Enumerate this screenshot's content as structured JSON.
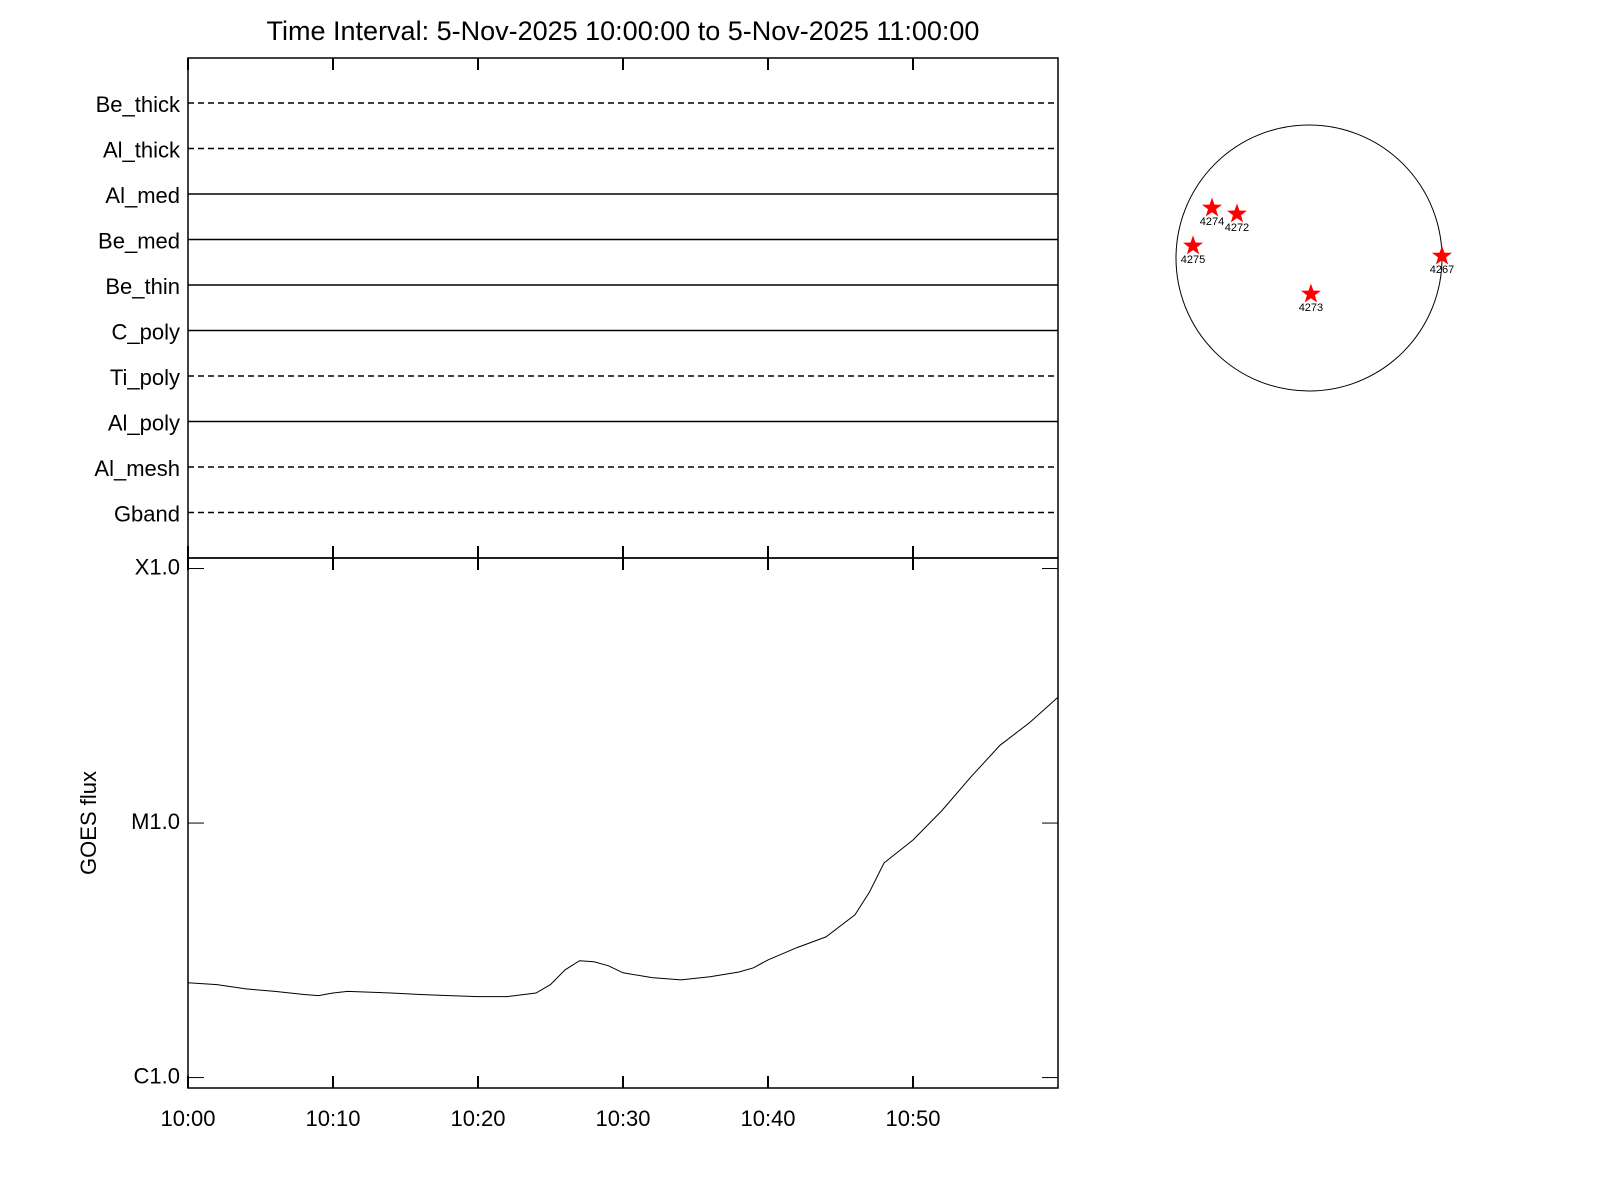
{
  "chart_data": [
    {
      "type": "detector_rows",
      "title": "Time Interval:  5-Nov-2025 10:00:00 to  5-Nov-2025 11:00:00",
      "rows": [
        {
          "name": "Be_thick",
          "style": "dashed"
        },
        {
          "name": "Al_thick",
          "style": "dashed"
        },
        {
          "name": "Al_med",
          "style": "solid"
        },
        {
          "name": "Be_med",
          "style": "solid"
        },
        {
          "name": "Be_thin",
          "style": "solid"
        },
        {
          "name": "C_poly",
          "style": "solid"
        },
        {
          "name": "Ti_poly",
          "style": "dashed"
        },
        {
          "name": "Al_poly",
          "style": "solid"
        },
        {
          "name": "Al_mesh",
          "style": "dashed"
        },
        {
          "name": "Gband",
          "style": "dashed"
        }
      ]
    },
    {
      "type": "line",
      "y_label": "GOES flux",
      "log_y": true,
      "color": "#000000",
      "x": [
        "10:00",
        "10:02",
        "10:04",
        "10:06",
        "10:08",
        "10:09",
        "10:10",
        "10:11",
        "10:14",
        "10:16",
        "10:18",
        "10:20",
        "10:22",
        "10:24",
        "10:25",
        "10:26",
        "10:27",
        "10:28",
        "10:29",
        "10:30",
        "10:32",
        "10:34",
        "10:36",
        "10:38",
        "10:39",
        "10:40",
        "10:42",
        "10:44",
        "10:46",
        "10:47",
        "10:48",
        "10:50",
        "10:52",
        "10:54",
        "10:56",
        "10:58",
        "11:00"
      ],
      "values": [
        2.36e-06,
        2.32e-06,
        2.23e-06,
        2.18e-06,
        2.12e-06,
        2.1e-06,
        2.15e-06,
        2.18e-06,
        2.15e-06,
        2.12e-06,
        2.1e-06,
        2.08e-06,
        2.08e-06,
        2.15e-06,
        2.32e-06,
        2.65e-06,
        2.88e-06,
        2.85e-06,
        2.75e-06,
        2.58e-06,
        2.47e-06,
        2.42e-06,
        2.49e-06,
        2.6e-06,
        2.7e-06,
        2.9e-06,
        3.24e-06,
        3.57e-06,
        4.36e-06,
        5.36e-06,
        6.97e-06,
        8.58e-06,
        1.12e-05,
        1.52e-05,
        2.02e-05,
        2.47e-05,
        3.12e-05
      ],
      "xlim": [
        "10:00",
        "11:00"
      ],
      "xticks": [
        "10:00",
        "10:10",
        "10:20",
        "10:30",
        "10:40",
        "10:50"
      ],
      "ylim": [
        9.1e-07,
        0.00011
      ],
      "yticks": [
        {
          "value": 1e-06,
          "label": "C1.0"
        },
        {
          "value": 1e-05,
          "label": "M1.0"
        },
        {
          "value": 0.0001,
          "label": "X1.0"
        }
      ]
    },
    {
      "type": "disk",
      "color": "#ff0000",
      "xlim": [
        -960,
        960
      ],
      "ylim": [
        -960,
        960
      ],
      "regions": [
        {
          "label": "4274",
          "x": -700,
          "y": 361
        },
        {
          "label": "4272",
          "x": -520,
          "y": 318
        },
        {
          "label": "4275",
          "x": -837,
          "y": 87
        },
        {
          "label": "4267",
          "x": 960,
          "y": 14
        },
        {
          "label": "4273",
          "x": 14,
          "y": -260
        }
      ]
    }
  ]
}
